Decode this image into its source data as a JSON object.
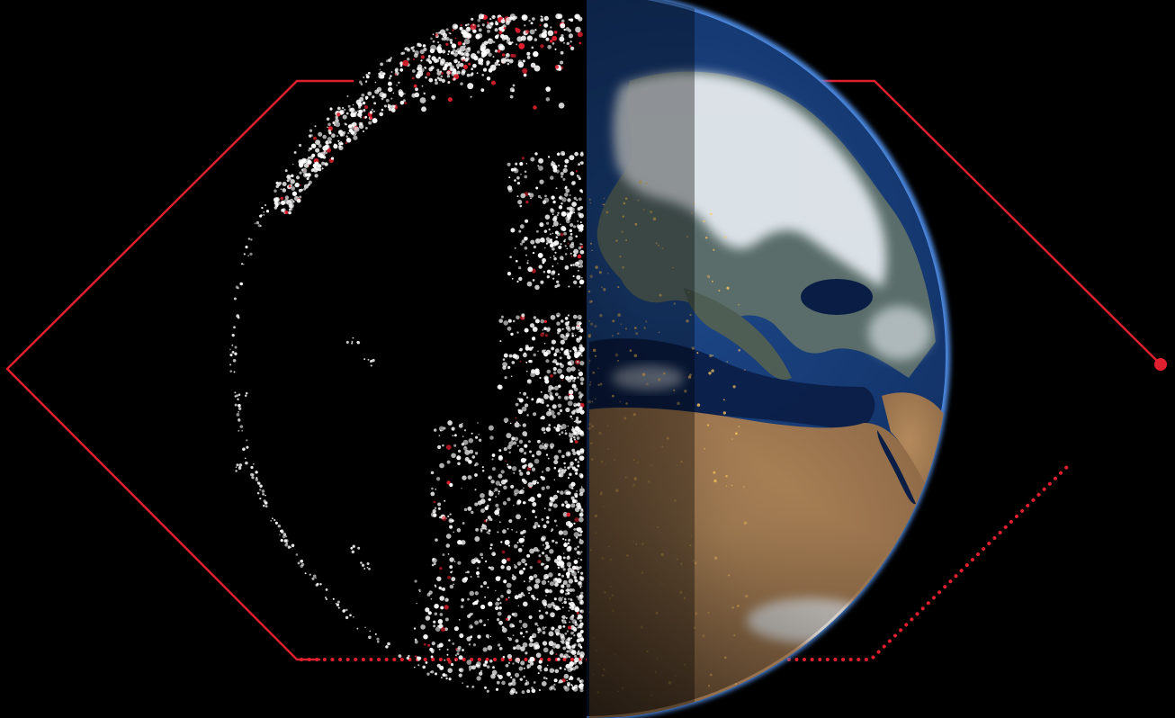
{
  "scene": {
    "subject": "earth-globe",
    "left_half_style": "point-cloud",
    "right_half_style": "satellite-photo"
  },
  "colors": {
    "background": "#000000",
    "accent": "#e0202e",
    "dots_white": "#ffffff",
    "ocean_deep": "#0b2350",
    "ocean_mid": "#1e4a8c",
    "atmosphere": "#4f8ee8",
    "desert": "#b48a5c",
    "desert_dark": "#8a6644",
    "clouds": "#e6ecf2",
    "city_lights": "#ffc860"
  },
  "icons": [
    "red-endpoint-dot-icon"
  ]
}
